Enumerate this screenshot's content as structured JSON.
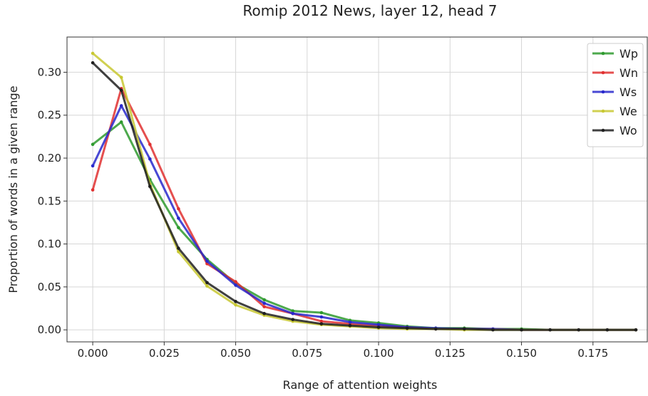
{
  "chart_data": {
    "type": "line",
    "title": "Romip 2012 News, layer 12, head 7",
    "xlabel": "Range of attention weights",
    "ylabel": "Proportion of words in a given range",
    "x": [
      0.0,
      0.01,
      0.02,
      0.03,
      0.04,
      0.05,
      0.06,
      0.07,
      0.08,
      0.09,
      0.1,
      0.11,
      0.12,
      0.13,
      0.14,
      0.15,
      0.16,
      0.17,
      0.18,
      0.19
    ],
    "xlim": [
      -0.009,
      0.194
    ],
    "ylim": [
      -0.014,
      0.341
    ],
    "xticks": [
      "0.000",
      "0.025",
      "0.050",
      "0.075",
      "0.100",
      "0.125",
      "0.150",
      "0.175"
    ],
    "yticks": [
      "0.00",
      "0.05",
      "0.10",
      "0.15",
      "0.20",
      "0.25",
      "0.30"
    ],
    "grid": true,
    "legend_position": "top-right",
    "series": [
      {
        "name": "Wp",
        "color": "#2e9a2e",
        "values": [
          0.216,
          0.242,
          0.175,
          0.119,
          0.082,
          0.054,
          0.035,
          0.022,
          0.02,
          0.011,
          0.008,
          0.004,
          0.002,
          0.002,
          0.001,
          0.001,
          0.0,
          0.0,
          0.0,
          0.0
        ]
      },
      {
        "name": "Wn",
        "color": "#e03030",
        "values": [
          0.163,
          0.281,
          0.216,
          0.141,
          0.077,
          0.056,
          0.027,
          0.019,
          0.01,
          0.007,
          0.005,
          0.003,
          0.001,
          0.001,
          0.001,
          0.0,
          0.0,
          0.0,
          0.0,
          0.0
        ]
      },
      {
        "name": "Ws",
        "color": "#2828cc",
        "values": [
          0.191,
          0.261,
          0.199,
          0.13,
          0.08,
          0.052,
          0.031,
          0.019,
          0.015,
          0.009,
          0.006,
          0.003,
          0.002,
          0.001,
          0.001,
          0.0,
          0.0,
          0.0,
          0.0,
          0.0
        ]
      },
      {
        "name": "We",
        "color": "#c8c832",
        "values": [
          0.322,
          0.294,
          0.17,
          0.091,
          0.051,
          0.029,
          0.017,
          0.01,
          0.006,
          0.004,
          0.002,
          0.001,
          0.001,
          0.0,
          0.0,
          0.0,
          0.0,
          0.0,
          0.0,
          0.0
        ]
      },
      {
        "name": "Wo",
        "color": "#1f1f1f",
        "values": [
          0.311,
          0.279,
          0.167,
          0.095,
          0.055,
          0.033,
          0.019,
          0.012,
          0.007,
          0.005,
          0.003,
          0.002,
          0.001,
          0.001,
          0.0,
          0.0,
          0.0,
          0.0,
          0.0,
          0.0
        ]
      }
    ]
  }
}
